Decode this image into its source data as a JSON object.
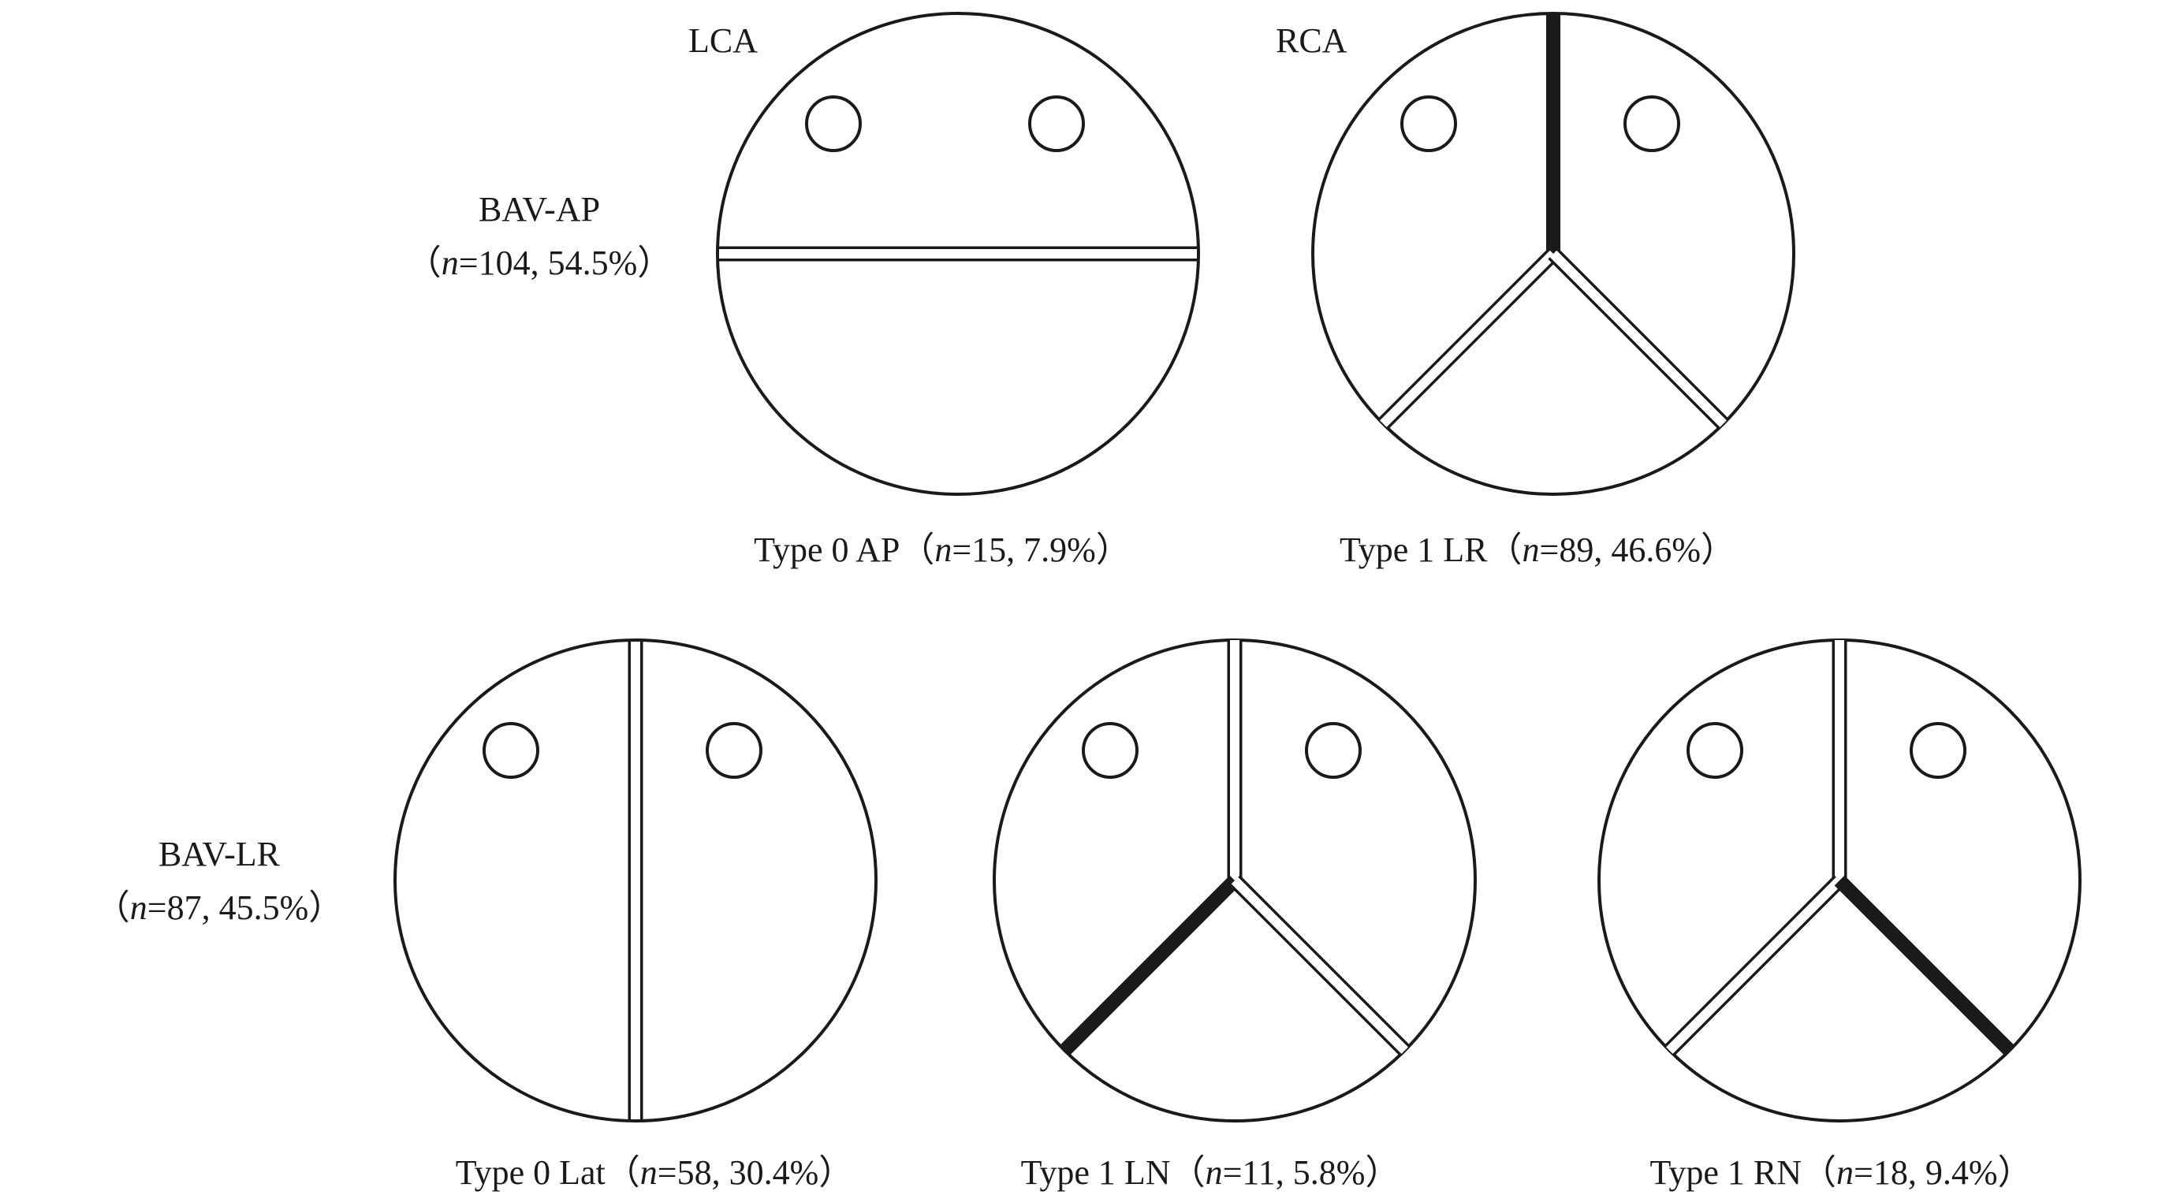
{
  "orientation": {
    "lca": "LCA",
    "rca": "RCA"
  },
  "groups": [
    {
      "name": "BAV-AP",
      "n": "104",
      "pct": "54.5%"
    },
    {
      "name": "BAV-LR",
      "n": "87",
      "pct": "45.5%"
    }
  ],
  "valves": [
    {
      "type": "Type 0 AP",
      "n": "15",
      "pct": "7.9%",
      "commissure": "horizontal",
      "raphe": "none"
    },
    {
      "type": "Type 1 LR",
      "n": "89",
      "pct": "46.6%",
      "commissure": "Y",
      "raphe": "top"
    },
    {
      "type": "Type 0 Lat",
      "n": "58",
      "pct": "30.4%",
      "commissure": "vertical",
      "raphe": "none"
    },
    {
      "type": "Type 1 LN",
      "n": "11",
      "pct": "5.8%",
      "commissure": "Y",
      "raphe": "left"
    },
    {
      "type": "Type 1 RN",
      "n": "18",
      "pct": "9.4%",
      "commissure": "Y",
      "raphe": "right"
    }
  ],
  "colors": {
    "stroke": "#1a1a1a",
    "raphe": "#1a1a1a",
    "fill": "#ffffff"
  }
}
